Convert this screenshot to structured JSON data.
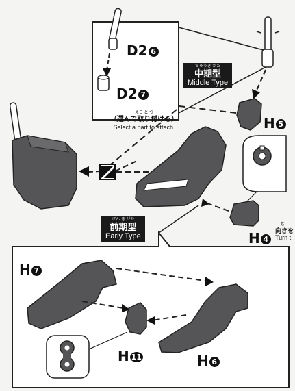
{
  "parts": {
    "d2_6": {
      "letter": "D2",
      "num": "6"
    },
    "d2_7": {
      "letter": "D2",
      "num": "7"
    },
    "h5": {
      "letter": "H",
      "num": "5"
    },
    "h4": {
      "letter": "H",
      "num": "4"
    },
    "h7": {
      "letter": "H",
      "num": "7"
    },
    "h6": {
      "letter": "H",
      "num": "6"
    },
    "h11": {
      "letter": "H",
      "num": "11"
    }
  },
  "middle_type": {
    "ruby": "ちゅうき がた",
    "jp": "中期型",
    "en": "Middle Type"
  },
  "early_type": {
    "ruby": "ぜん き がた",
    "jp": "前期型",
    "en": "Early Type"
  },
  "select_part": {
    "ruby": "えら     と  つ",
    "jp": "（選んで取り付ける）",
    "en": "Select a part to attach."
  },
  "turn_note": {
    "ruby": "む",
    "jp": "向きを",
    "en": "Turn t"
  },
  "colors": {
    "part": "#555558",
    "line": "#222222",
    "badge": "#1a1a1a"
  }
}
